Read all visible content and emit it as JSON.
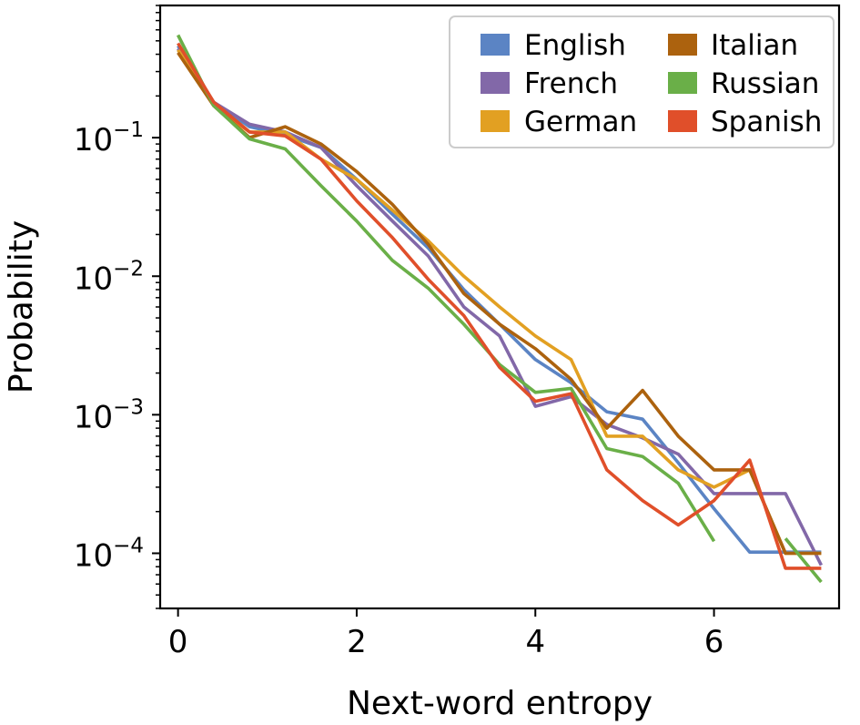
{
  "chart_data": {
    "type": "line",
    "title": "",
    "xlabel": "Next-word entropy",
    "ylabel": "Probability",
    "xlim": [
      -0.2,
      7.4
    ],
    "ylim": [
      4e-05,
      0.9
    ],
    "y_scale": "log",
    "x_ticks": [
      0,
      2,
      4,
      6
    ],
    "x_tick_labels": [
      "0",
      "2",
      "4",
      "6"
    ],
    "y_ticks": [
      0.1,
      0.01,
      0.001,
      0.0001
    ],
    "y_tick_labels": [
      {
        "base": "10",
        "exp": "−1"
      },
      {
        "base": "10",
        "exp": "−2"
      },
      {
        "base": "10",
        "exp": "−3"
      },
      {
        "base": "10",
        "exp": "−4"
      }
    ],
    "grid": false,
    "legend": {
      "placement": "top-right",
      "columns": 2
    },
    "series": [
      {
        "name": "English",
        "color": "#5b84c4",
        "points": [
          [
            0,
            0.46
          ],
          [
            0.4,
            0.18
          ],
          [
            0.8,
            0.12
          ],
          [
            1.2,
            0.105
          ],
          [
            1.6,
            0.085
          ],
          [
            2.0,
            0.05
          ],
          [
            2.4,
            0.028
          ],
          [
            2.8,
            0.016
          ],
          [
            3.2,
            0.008
          ],
          [
            3.6,
            0.0045
          ],
          [
            4.0,
            0.0025
          ],
          [
            4.4,
            0.0017
          ],
          [
            4.8,
            0.00105
          ],
          [
            5.2,
            0.00093
          ],
          [
            5.6,
            0.00045
          ],
          [
            6.0,
            0.00021
          ],
          [
            6.4,
            0.000102
          ],
          [
            6.8,
            0.000102
          ],
          [
            7.2,
            0.000102
          ]
        ]
      },
      {
        "name": "French",
        "color": "#8268a8",
        "points": [
          [
            0,
            0.44
          ],
          [
            0.4,
            0.18
          ],
          [
            0.8,
            0.125
          ],
          [
            1.2,
            0.11
          ],
          [
            1.6,
            0.085
          ],
          [
            2.0,
            0.045
          ],
          [
            2.4,
            0.025
          ],
          [
            2.8,
            0.014
          ],
          [
            3.2,
            0.006
          ],
          [
            3.6,
            0.0037
          ],
          [
            4.0,
            0.00115
          ],
          [
            4.4,
            0.00135
          ],
          [
            4.8,
            0.00085
          ],
          [
            5.2,
            0.00068
          ],
          [
            5.6,
            0.00052
          ],
          [
            6.0,
            0.00027
          ],
          [
            6.4,
            0.00027
          ],
          [
            6.8,
            0.00027
          ],
          [
            7.2,
            8.2e-05
          ]
        ]
      },
      {
        "name": "German",
        "color": "#e2a022",
        "points": [
          [
            0,
            0.43
          ],
          [
            0.4,
            0.17
          ],
          [
            0.8,
            0.11
          ],
          [
            1.2,
            0.11
          ],
          [
            1.6,
            0.07
          ],
          [
            2.0,
            0.05
          ],
          [
            2.4,
            0.03
          ],
          [
            2.8,
            0.018
          ],
          [
            3.2,
            0.01
          ],
          [
            3.6,
            0.006
          ],
          [
            4.0,
            0.0037
          ],
          [
            4.4,
            0.0025
          ],
          [
            4.8,
            0.0007
          ],
          [
            5.2,
            0.0007
          ],
          [
            5.6,
            0.0004
          ],
          [
            6.0,
            0.0003
          ],
          [
            6.4,
            0.0004
          ],
          [
            6.8,
            0.0001
          ],
          [
            7.2,
            0.0001
          ]
        ]
      },
      {
        "name": "Italian",
        "color": "#ac620e",
        "points": [
          [
            0,
            0.41
          ],
          [
            0.4,
            0.17
          ],
          [
            0.8,
            0.1
          ],
          [
            1.2,
            0.12
          ],
          [
            1.6,
            0.09
          ],
          [
            2.0,
            0.057
          ],
          [
            2.4,
            0.033
          ],
          [
            2.8,
            0.017
          ],
          [
            3.2,
            0.0075
          ],
          [
            3.6,
            0.0045
          ],
          [
            4.0,
            0.003
          ],
          [
            4.4,
            0.0018
          ],
          [
            4.8,
            0.0008
          ],
          [
            5.2,
            0.0015
          ],
          [
            5.6,
            0.0007
          ],
          [
            6.0,
            0.0004
          ],
          [
            6.4,
            0.0004
          ],
          [
            6.8,
            0.0001
          ],
          [
            7.2,
            0.0001
          ]
        ]
      },
      {
        "name": "Russian",
        "color": "#6aaf48",
        "points": [
          [
            0,
            0.55
          ],
          [
            0.4,
            0.17
          ],
          [
            0.8,
            0.098
          ],
          [
            1.2,
            0.083
          ],
          [
            1.6,
            0.045
          ],
          [
            2.0,
            0.025
          ],
          [
            2.4,
            0.013
          ],
          [
            2.8,
            0.0082
          ],
          [
            3.2,
            0.0045
          ],
          [
            3.6,
            0.0023
          ],
          [
            4.0,
            0.00145
          ],
          [
            4.4,
            0.00155
          ],
          [
            4.8,
            0.00057
          ],
          [
            5.2,
            0.0005
          ],
          [
            5.6,
            0.00032
          ],
          [
            6.0,
            0.000122
          ],
          [
            null,
            null
          ],
          [
            6.8,
            0.000128
          ],
          [
            7.2,
            6.2e-05
          ]
        ]
      },
      {
        "name": "Spanish",
        "color": "#e04f2a",
        "points": [
          [
            0,
            0.48
          ],
          [
            0.4,
            0.18
          ],
          [
            0.8,
            0.11
          ],
          [
            1.2,
            0.103
          ],
          [
            1.6,
            0.07
          ],
          [
            2.0,
            0.035
          ],
          [
            2.4,
            0.019
          ],
          [
            2.8,
            0.0095
          ],
          [
            3.2,
            0.0052
          ],
          [
            3.6,
            0.0022
          ],
          [
            4.0,
            0.00125
          ],
          [
            4.4,
            0.00142
          ],
          [
            4.8,
            0.0004
          ],
          [
            5.2,
            0.00024
          ],
          [
            5.6,
            0.00016
          ],
          [
            6.0,
            0.00024
          ],
          [
            6.4,
            0.00047
          ],
          [
            6.8,
            7.8e-05
          ],
          [
            7.2,
            7.8e-05
          ]
        ]
      }
    ]
  }
}
